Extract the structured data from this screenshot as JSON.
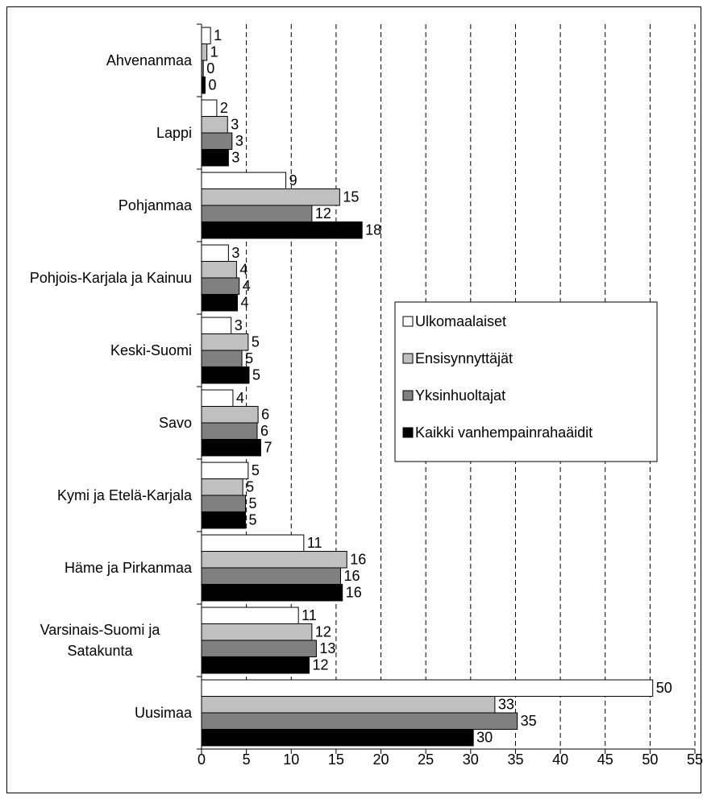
{
  "chart_data": {
    "type": "hbar",
    "categories": [
      "Ahvenanmaa",
      "Lappi",
      "Pohjanmaa",
      "Pohjois-Karjala ja Kainuu",
      "Keski-Suomi",
      "Savo",
      "Kymi ja Etelä-Karjala",
      "Häme ja Pirkanmaa",
      "Varsinais-Suomi ja Satakunta",
      "Uusimaa"
    ],
    "series": [
      {
        "name": "Ulkomaalaiset",
        "color": "#ffffff",
        "values": [
          1.0,
          1.7,
          9.4,
          3.0,
          3.3,
          3.5,
          5.2,
          11.4,
          10.8,
          50.3
        ],
        "value_labels": [
          "1",
          "2",
          "9",
          "3",
          "3",
          "4",
          "5",
          "11",
          "11",
          "50"
        ]
      },
      {
        "name": "Ensisynnyttäjät",
        "color": "#c0c0c0",
        "values": [
          0.6,
          2.9,
          15.4,
          3.9,
          5.2,
          6.3,
          4.6,
          16.2,
          12.3,
          32.7
        ],
        "value_labels": [
          "1",
          "3",
          "15",
          "4",
          "5",
          "6",
          "5",
          "16",
          "12",
          "33"
        ]
      },
      {
        "name": "Yksinhuoltajat",
        "color": "#808080",
        "values": [
          0.2,
          3.4,
          12.3,
          4.2,
          4.5,
          6.2,
          4.9,
          15.5,
          12.8,
          35.2
        ],
        "value_labels": [
          "0",
          "3",
          "12",
          "4",
          "5",
          "6",
          "5",
          "16",
          "13",
          "35"
        ]
      },
      {
        "name": "Kaikki vanhempainrahaäidit",
        "color": "#000000",
        "values": [
          0.4,
          3.0,
          17.9,
          4.0,
          5.3,
          6.6,
          4.9,
          15.7,
          12.0,
          30.3
        ],
        "value_labels": [
          "0",
          "3",
          "18",
          "4",
          "5",
          "7",
          "5",
          "16",
          "12",
          "30"
        ]
      }
    ],
    "xlim": [
      0,
      55
    ],
    "xticks": [
      0,
      5,
      10,
      15,
      20,
      25,
      30,
      35,
      40,
      45,
      50,
      55
    ],
    "grid": true,
    "legend": "center-right"
  }
}
